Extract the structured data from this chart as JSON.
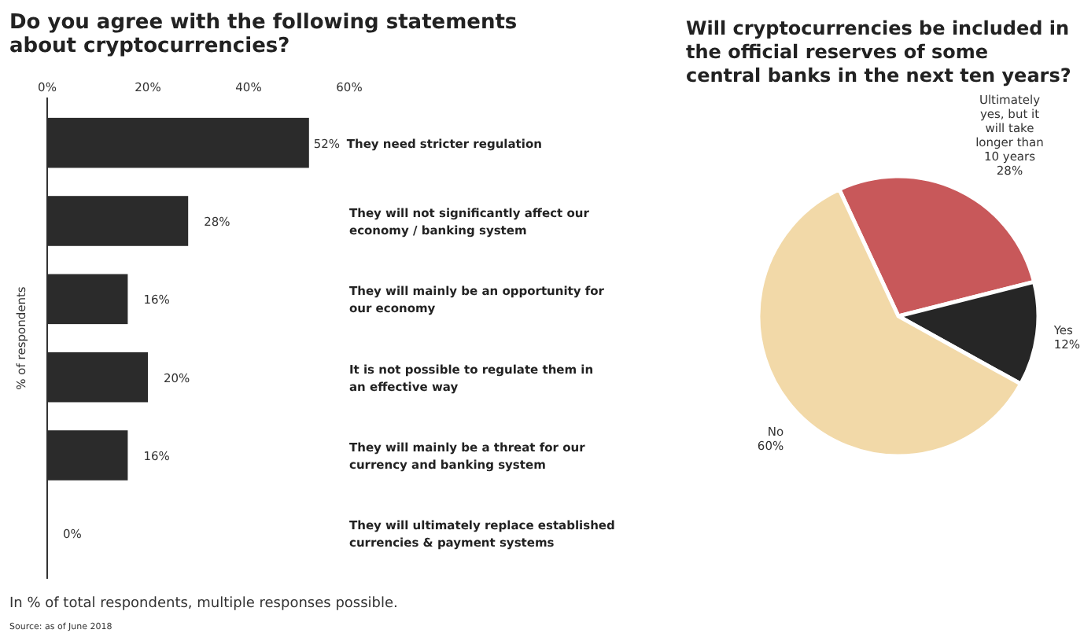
{
  "chart_data": [
    {
      "type": "bar",
      "orientation": "horizontal",
      "title": "Do you agree with the following statements about cryptocurrencies?",
      "ylabel": "% of respondents",
      "categories": [
        "They need stricter regulation",
        "They will not significantly affect our economy / banking system",
        "They will mainly be an opportunity for our economy",
        "It is not possible to regulate them in an effective way",
        "They will mainly be a threat for our currency and banking system",
        "They will ultimately replace established currencies & payment systems"
      ],
      "values": [
        52,
        28,
        16,
        20,
        16,
        0
      ],
      "value_labels": [
        "52%",
        "28%",
        "16%",
        "20%",
        "16%",
        "0%"
      ],
      "color": "#2b2b2b",
      "xlim": [
        0,
        60
      ],
      "xticks": [
        {
          "value": 0,
          "label": "0%"
        },
        {
          "value": 20,
          "label": "20%"
        },
        {
          "value": 40,
          "label": "40%"
        },
        {
          "value": 60,
          "label": "60%"
        }
      ],
      "annotations": [
        "In % of total respondents, multiple responses possible.",
        "Source: as of June 2018"
      ]
    },
    {
      "type": "pie",
      "title": "Will cryptocurrencies be included in the official reserves of some central banks in the next ten years?",
      "categories": [
        "Ultimately yes, but it will take longer than 10 years",
        "Yes",
        "No"
      ],
      "values": [
        28,
        12,
        60
      ],
      "value_labels": [
        "28%",
        "12%",
        "60%"
      ],
      "colors": [
        "#c8585a",
        "#262626",
        "#f2d9a8"
      ]
    }
  ]
}
